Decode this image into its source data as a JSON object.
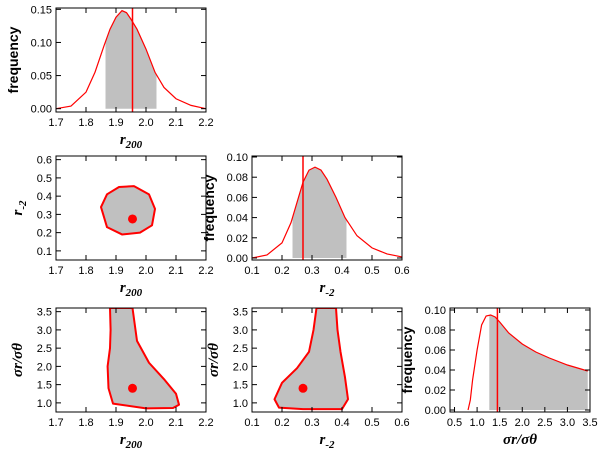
{
  "colors": {
    "curve": "#ff0000",
    "shade": "#c0c0c0",
    "marker": "#ff0000",
    "axis": "#000000"
  },
  "chart_data": [
    {
      "id": "p11",
      "type": "line",
      "title": "",
      "xlabel": "r",
      "xlabel_sub": "200",
      "ylabel": "frequency",
      "xlim": [
        1.7,
        2.2
      ],
      "ylim": [
        -0.005,
        0.152
      ],
      "xticks": [
        1.7,
        1.8,
        1.9,
        2.0,
        2.1,
        2.2
      ],
      "xtick_labels": [
        "1.7",
        "1.8",
        "1.9",
        "2.0",
        "2.1",
        "2.2"
      ],
      "yticks": [
        0.0,
        0.05,
        0.1,
        0.15
      ],
      "ytick_labels": [
        "0.00",
        "0.05",
        "0.10",
        "0.15"
      ],
      "x": [
        1.7,
        1.75,
        1.8,
        1.83,
        1.86,
        1.88,
        1.9,
        1.92,
        1.935,
        1.95,
        1.97,
        2.0,
        2.03,
        2.06,
        2.1,
        2.15,
        2.2
      ],
      "y": [
        0.0,
        0.004,
        0.025,
        0.055,
        0.095,
        0.12,
        0.138,
        0.148,
        0.145,
        0.135,
        0.12,
        0.09,
        0.055,
        0.032,
        0.015,
        0.005,
        0.0
      ],
      "shade_range": [
        1.865,
        2.035
      ],
      "marker_line": 1.955
    },
    {
      "id": "p21",
      "type": "contour",
      "xlabel": "r",
      "xlabel_sub": "200",
      "ylabel": "r",
      "ylabel_sub": "-2",
      "xlim": [
        1.7,
        2.2
      ],
      "ylim": [
        0.05,
        0.62
      ],
      "xticks": [
        1.7,
        1.8,
        1.9,
        2.0,
        2.1,
        2.2
      ],
      "xtick_labels": [
        "1.7",
        "1.8",
        "1.9",
        "2.0",
        "2.1",
        "2.2"
      ],
      "yticks": [
        0.1,
        0.2,
        0.3,
        0.4,
        0.5,
        0.6
      ],
      "ytick_labels": [
        "0.1",
        "0.2",
        "0.3",
        "0.4",
        "0.5",
        "0.6"
      ],
      "contour_x": [
        1.85,
        1.87,
        1.91,
        1.96,
        2.01,
        2.03,
        2.02,
        1.98,
        1.92,
        1.87,
        1.85
      ],
      "contour_y": [
        0.34,
        0.41,
        0.45,
        0.455,
        0.41,
        0.33,
        0.24,
        0.2,
        0.19,
        0.23,
        0.34
      ],
      "point": [
        1.955,
        0.275
      ]
    },
    {
      "id": "p22",
      "type": "line",
      "xlabel": "r",
      "xlabel_sub": "-2",
      "ylabel": "frequency",
      "xlim": [
        0.1,
        0.6
      ],
      "ylim": [
        -0.002,
        0.101
      ],
      "xticks": [
        0.1,
        0.2,
        0.3,
        0.4,
        0.5,
        0.6
      ],
      "xtick_labels": [
        "0.1",
        "0.2",
        "0.3",
        "0.4",
        "0.5",
        "0.6"
      ],
      "yticks": [
        0.0,
        0.02,
        0.04,
        0.06,
        0.08,
        0.1
      ],
      "ytick_labels": [
        "0.00",
        "0.02",
        "0.04",
        "0.06",
        "0.08",
        "0.10"
      ],
      "x": [
        0.1,
        0.15,
        0.2,
        0.23,
        0.25,
        0.27,
        0.29,
        0.31,
        0.33,
        0.35,
        0.38,
        0.41,
        0.45,
        0.5,
        0.55,
        0.6
      ],
      "y": [
        0.0,
        0.003,
        0.015,
        0.035,
        0.055,
        0.075,
        0.087,
        0.09,
        0.087,
        0.078,
        0.06,
        0.04,
        0.022,
        0.01,
        0.004,
        0.001
      ],
      "shade_range": [
        0.235,
        0.415
      ],
      "marker_line": 0.27
    },
    {
      "id": "p31",
      "type": "contour",
      "xlabel": "r",
      "xlabel_sub": "200",
      "ylabel": "σr/σθ",
      "xlim": [
        1.7,
        2.2
      ],
      "ylim": [
        0.75,
        3.6
      ],
      "xticks": [
        1.7,
        1.8,
        1.9,
        2.0,
        2.1,
        2.2
      ],
      "xtick_labels": [
        "1.7",
        "1.8",
        "1.9",
        "2.0",
        "2.1",
        "2.2"
      ],
      "yticks": [
        1.0,
        1.5,
        2.0,
        2.5,
        3.0,
        3.5
      ],
      "ytick_labels": [
        "1.0",
        "1.5",
        "2.0",
        "2.5",
        "3.0",
        "3.5"
      ],
      "contour_x": [
        1.88,
        1.882,
        1.88,
        1.872,
        1.875,
        1.89,
        2.0,
        2.09,
        2.11,
        2.1,
        2.06,
        2.01,
        1.97,
        1.955
      ],
      "contour_y": [
        3.6,
        3.0,
        2.5,
        2.0,
        1.4,
        0.98,
        0.85,
        0.86,
        0.95,
        1.25,
        1.65,
        2.1,
        2.7,
        3.6
      ],
      "point": [
        1.955,
        1.4
      ]
    },
    {
      "id": "p32",
      "type": "contour",
      "xlabel": "r",
      "xlabel_sub": "-2",
      "ylabel": "σr/σθ",
      "xlim": [
        0.1,
        0.6
      ],
      "ylim": [
        0.75,
        3.6
      ],
      "xticks": [
        0.1,
        0.2,
        0.3,
        0.4,
        0.5,
        0.6
      ],
      "xtick_labels": [
        "0.1",
        "0.2",
        "0.3",
        "0.4",
        "0.5",
        "0.6"
      ],
      "yticks": [
        1.0,
        1.5,
        2.0,
        2.5,
        3.0,
        3.5
      ],
      "ytick_labels": [
        "1.0",
        "1.5",
        "2.0",
        "2.5",
        "3.0",
        "3.5"
      ],
      "contour_x": [
        0.315,
        0.305,
        0.29,
        0.25,
        0.2,
        0.175,
        0.19,
        0.27,
        0.4,
        0.42,
        0.41,
        0.395,
        0.385,
        0.38
      ],
      "contour_y": [
        3.6,
        3.0,
        2.4,
        1.95,
        1.55,
        1.1,
        0.87,
        0.83,
        0.83,
        1.1,
        1.7,
        2.4,
        3.0,
        3.6
      ],
      "point": [
        0.27,
        1.4
      ]
    },
    {
      "id": "p33",
      "type": "line",
      "xlabel": "σr/σθ",
      "ylabel": "frequency",
      "xlim": [
        0.4,
        3.5
      ],
      "ylim": [
        -0.002,
        0.102
      ],
      "xticks": [
        0.5,
        1.0,
        1.5,
        2.0,
        2.5,
        3.0,
        3.5
      ],
      "xtick_labels": [
        "0.5",
        "1.0",
        "1.5",
        "2.0",
        "2.5",
        "3.0",
        "3.5"
      ],
      "yticks": [
        0.0,
        0.02,
        0.04,
        0.06,
        0.08,
        0.1
      ],
      "ytick_labels": [
        "0.00",
        "0.02",
        "0.04",
        "0.06",
        "0.08",
        "0.10"
      ],
      "x": [
        0.8,
        0.85,
        0.9,
        1.0,
        1.1,
        1.2,
        1.3,
        1.4,
        1.5,
        1.7,
        2.0,
        2.3,
        2.6,
        3.0,
        3.3,
        3.45
      ],
      "y": [
        0.0,
        0.01,
        0.03,
        0.06,
        0.085,
        0.094,
        0.095,
        0.093,
        0.088,
        0.077,
        0.066,
        0.058,
        0.052,
        0.045,
        0.041,
        0.039
      ],
      "shade_range": [
        1.27,
        3.45
      ],
      "marker_line": 1.45
    }
  ]
}
